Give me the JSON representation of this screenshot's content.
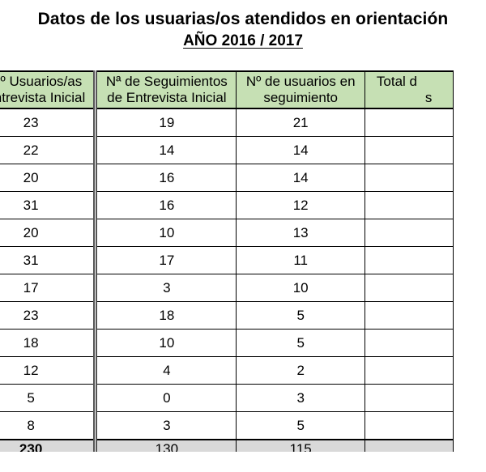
{
  "title": "Datos de los usuarias/os atendidos en orientación",
  "subtitle": "AÑO 2016 / 2017",
  "table": {
    "headers": [
      [
        "Nº Usuarios/as",
        "Entrevista Inicial"
      ],
      [
        "Nª de Seguimientos",
        "de Entrevista Inicial"
      ],
      [
        "Nº de usuarios en",
        "seguimiento"
      ],
      [
        "Total d",
        "s"
      ]
    ],
    "rows": [
      [
        "23",
        "19",
        "21",
        ""
      ],
      [
        "22",
        "14",
        "14",
        ""
      ],
      [
        "20",
        "16",
        "14",
        ""
      ],
      [
        "31",
        "16",
        "12",
        ""
      ],
      [
        "20",
        "10",
        "13",
        ""
      ],
      [
        "31",
        "17",
        "11",
        ""
      ],
      [
        "17",
        "3",
        "10",
        ""
      ],
      [
        "23",
        "18",
        "5",
        ""
      ],
      [
        "18",
        "10",
        "5",
        ""
      ],
      [
        "12",
        "4",
        "2",
        ""
      ],
      [
        "5",
        "0",
        "3",
        ""
      ],
      [
        "8",
        "3",
        "5",
        ""
      ]
    ],
    "totals": [
      "230",
      "130",
      "115",
      ""
    ]
  }
}
